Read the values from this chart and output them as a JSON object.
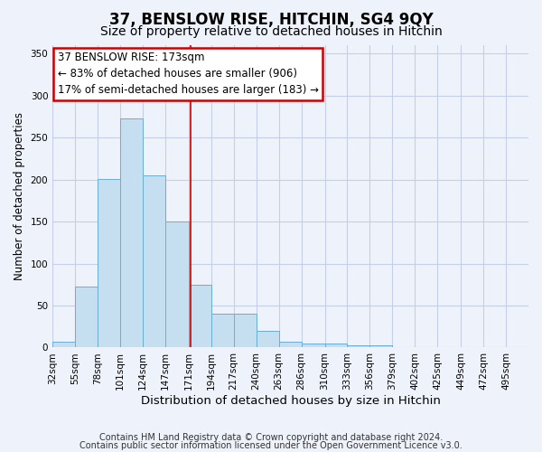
{
  "title": "37, BENSLOW RISE, HITCHIN, SG4 9QY",
  "subtitle": "Size of property relative to detached houses in Hitchin",
  "xlabel": "Distribution of detached houses by size in Hitchin",
  "ylabel": "Number of detached properties",
  "bar_values": [
    7,
    73,
    201,
    273,
    205,
    150,
    75,
    40,
    40,
    20,
    7,
    5,
    5,
    3,
    3,
    0,
    0,
    0,
    0,
    0,
    0
  ],
  "bar_edges": [
    32,
    55,
    78,
    101,
    124,
    147,
    171,
    194,
    217,
    240,
    263,
    286,
    310,
    333,
    356,
    379,
    402,
    425,
    449,
    472,
    495
  ],
  "tick_labels": [
    "32sqm",
    "55sqm",
    "78sqm",
    "101sqm",
    "124sqm",
    "147sqm",
    "171sqm",
    "194sqm",
    "217sqm",
    "240sqm",
    "263sqm",
    "286sqm",
    "310sqm",
    "333sqm",
    "356sqm",
    "379sqm",
    "402sqm",
    "425sqm",
    "449sqm",
    "472sqm",
    "495sqm"
  ],
  "bar_color": "#c5dff0",
  "bar_edge_color": "#6aaed6",
  "vline_x": 173,
  "vline_color": "#cc0000",
  "annotation_title": "37 BENSLOW RISE: 173sqm",
  "annotation_line1": "← 83% of detached houses are smaller (906)",
  "annotation_line2": "17% of semi-detached houses are larger (183) →",
  "annotation_box_edgecolor": "#cc0000",
  "ylim": [
    0,
    360
  ],
  "yticks": [
    0,
    50,
    100,
    150,
    200,
    250,
    300,
    350
  ],
  "footnote1": "Contains HM Land Registry data © Crown copyright and database right 2024.",
  "footnote2": "Contains public sector information licensed under the Open Government Licence v3.0.",
  "background_color": "#eef2fb",
  "grid_color": "#c5d0e8",
  "title_fontsize": 12,
  "subtitle_fontsize": 10,
  "xlabel_fontsize": 9.5,
  "ylabel_fontsize": 8.5,
  "tick_fontsize": 7.5,
  "annotation_fontsize": 8.5,
  "footnote_fontsize": 7
}
